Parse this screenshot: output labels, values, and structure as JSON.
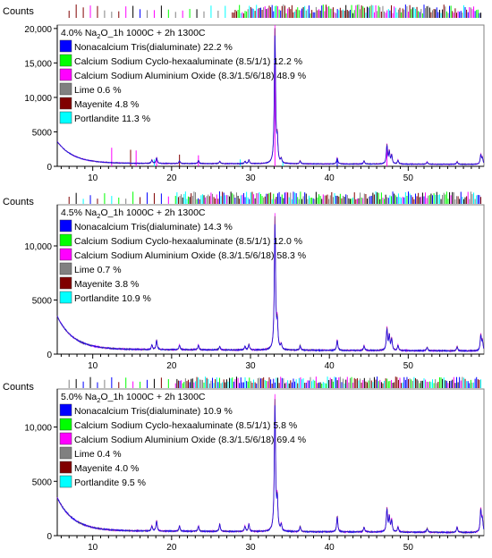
{
  "chart_data": [
    {
      "type": "line",
      "title": "4.0% Na2O_1h  1000C + 2h 1300C",
      "title_parts": {
        "pre": "4.0% Na",
        "sub": "2",
        "post": "O_1h  1000C + 2h 1300C"
      },
      "ylabel": "Counts",
      "xlabel": "",
      "xlim": [
        5.5,
        59.6
      ],
      "ylim": [
        0,
        20500
      ],
      "xticks": [
        10,
        20,
        30,
        40,
        50
      ],
      "xtick_labels": [
        "10",
        "20",
        "30",
        "40",
        "50"
      ],
      "yticks": [
        0,
        5000,
        10000,
        15000,
        20000
      ],
      "ytick_labels": [
        "0",
        "5000",
        "10,000",
        "15,000",
        "20,000"
      ],
      "grid": false,
      "legend_position": "top-left",
      "legend": [
        {
          "label": "Nonacalcium Tris(dialuminate) 22.2 %",
          "color": "#0000ff"
        },
        {
          "label": "Calcium Sodium Cyclo-hexaaluminate (8.5/1/1) 12.2 %",
          "color": "#00ff00"
        },
        {
          "label": "Calcium Sodium Aluminium Oxide (8.3/1.5/6/18) 48.9 %",
          "color": "#ff00ff"
        },
        {
          "label": "Lime 0.6 %",
          "color": "#808080"
        },
        {
          "label": "Mayenite 4.8 %",
          "color": "#800000"
        },
        {
          "label": "Portlandite 11.3 %",
          "color": "#00ffff"
        }
      ],
      "baseline": {
        "start": 3600,
        "decay": 0.5,
        "tail": 450,
        "slope": 3
      },
      "peaks": [
        [
          17.5,
          500
        ],
        [
          18.1,
          900
        ],
        [
          21.0,
          400
        ],
        [
          23.4,
          450
        ],
        [
          26.1,
          350
        ],
        [
          29.3,
          350
        ],
        [
          29.8,
          550
        ],
        [
          33.1,
          20000
        ],
        [
          33.4,
          3400
        ],
        [
          33.9,
          600
        ],
        [
          36.3,
          450
        ],
        [
          41.0,
          900
        ],
        [
          44.4,
          450
        ],
        [
          47.3,
          2800
        ],
        [
          47.6,
          1800
        ],
        [
          47.9,
          1300
        ],
        [
          48.7,
          600
        ],
        [
          52.4,
          350
        ],
        [
          56.2,
          400
        ],
        [
          59.2,
          1400
        ],
        [
          59.4,
          900
        ]
      ],
      "sticks": [
        {
          "x": 33.1,
          "y": 20000,
          "color": "#ff00ff"
        },
        {
          "x": 47.3,
          "y": 3000,
          "color": "#ff00ff"
        },
        {
          "x": 18.1,
          "y": 1200,
          "color": "#ff00ff"
        },
        {
          "x": 41.0,
          "y": 1200,
          "color": "#0000ff"
        },
        {
          "x": 17.8,
          "y": 1000,
          "color": "#00ffff"
        },
        {
          "x": 28.7,
          "y": 1000,
          "color": "#00ffff"
        },
        {
          "x": 34.1,
          "y": 700,
          "color": "#00ffff"
        },
        {
          "x": 12.4,
          "y": 2700,
          "color": "#ff00ff"
        },
        {
          "x": 14.8,
          "y": 2400,
          "color": "#800000"
        },
        {
          "x": 15.5,
          "y": 2300,
          "color": "#ff00ff"
        },
        {
          "x": 21.0,
          "y": 1700,
          "color": "#800000"
        },
        {
          "x": 23.4,
          "y": 1600,
          "color": "#ff00ff"
        }
      ]
    },
    {
      "type": "line",
      "title": "4.5% Na2O_1h  1000C + 2h 1300C",
      "title_parts": {
        "pre": "4.5% Na",
        "sub": "2",
        "post": "O_1h  1000C + 2h 1300C"
      },
      "ylabel": "Counts",
      "xlabel": "",
      "xlim": [
        5.5,
        59.6
      ],
      "ylim": [
        0,
        13800
      ],
      "xticks": [
        10,
        20,
        30,
        40,
        50
      ],
      "xtick_labels": [
        "10",
        "20",
        "30",
        "40",
        "50"
      ],
      "yticks": [
        0,
        5000,
        10000
      ],
      "ytick_labels": [
        "0",
        "5000",
        "10,000"
      ],
      "grid": false,
      "legend_position": "top-left",
      "legend": [
        {
          "label": "Nonacalcium Tris(dialuminate) 14.3 %",
          "color": "#0000ff"
        },
        {
          "label": "Calcium Sodium Cyclo-hexaaluminate (8.5/1/1) 12.0 %",
          "color": "#00ff00"
        },
        {
          "label": "Calcium Sodium Aluminium Oxide (8.3/1.5/6/18) 58.3 %",
          "color": "#ff00ff"
        },
        {
          "label": "Lime 0.7 %",
          "color": "#808080"
        },
        {
          "label": "Mayenite 3.8 %",
          "color": "#800000"
        },
        {
          "label": "Portlandite 10.9 %",
          "color": "#00ffff"
        }
      ],
      "baseline": {
        "start": 3500,
        "decay": 0.5,
        "tail": 450,
        "slope": 3
      },
      "peaks": [
        [
          17.5,
          450
        ],
        [
          18.1,
          900
        ],
        [
          21.0,
          450
        ],
        [
          23.4,
          450
        ],
        [
          26.1,
          350
        ],
        [
          29.3,
          350
        ],
        [
          29.8,
          550
        ],
        [
          33.1,
          12500
        ],
        [
          33.4,
          2400
        ],
        [
          33.9,
          500
        ],
        [
          36.3,
          450
        ],
        [
          41.0,
          1000
        ],
        [
          44.4,
          450
        ],
        [
          47.3,
          2100
        ],
        [
          47.6,
          1400
        ],
        [
          47.9,
          1100
        ],
        [
          48.7,
          500
        ],
        [
          52.4,
          350
        ],
        [
          56.2,
          400
        ],
        [
          59.2,
          1500
        ],
        [
          59.4,
          900
        ]
      ],
      "sticks": []
    },
    {
      "type": "line",
      "title": "5.0% Na2O_1h  1000C + 2h 1300C",
      "title_parts": {
        "pre": "5.0% Na",
        "sub": "2",
        "post": "O_1h  1000C + 2h 1300C"
      },
      "ylabel": "Counts",
      "xlabel": "",
      "xlim": [
        5.5,
        59.6
      ],
      "ylim": [
        0,
        13500
      ],
      "xticks": [
        10,
        20,
        30,
        40,
        50
      ],
      "xtick_labels": [
        "10",
        "20",
        "30",
        "40",
        "50"
      ],
      "yticks": [
        0,
        5000,
        10000
      ],
      "ytick_labels": [
        "0",
        "5000",
        "10,000"
      ],
      "grid": false,
      "legend_position": "top-left",
      "legend": [
        {
          "label": "Nonacalcium Tris(dialuminate) 10.9 %",
          "color": "#0000ff"
        },
        {
          "label": "Calcium Sodium Cyclo-hexaaluminate (8.5/1/1) 5.8 %",
          "color": "#00ff00"
        },
        {
          "label": "Calcium Sodium Aluminium Oxide (8.3/1.5/6/18) 69.4 %",
          "color": "#ff00ff"
        },
        {
          "label": "Lime 0.4 %",
          "color": "#808080"
        },
        {
          "label": "Mayenite 4.0 %",
          "color": "#800000"
        },
        {
          "label": "Portlandite 9.5 %",
          "color": "#00ffff"
        }
      ],
      "baseline": {
        "start": 3500,
        "decay": 0.5,
        "tail": 450,
        "slope": 3
      },
      "peaks": [
        [
          17.5,
          500
        ],
        [
          18.1,
          1000
        ],
        [
          21.0,
          500
        ],
        [
          23.4,
          500
        ],
        [
          26.1,
          700
        ],
        [
          29.3,
          500
        ],
        [
          29.8,
          700
        ],
        [
          33.1,
          12400
        ],
        [
          33.4,
          2800
        ],
        [
          33.9,
          600
        ],
        [
          36.3,
          500
        ],
        [
          41.0,
          1500
        ],
        [
          44.4,
          500
        ],
        [
          47.3,
          2200
        ],
        [
          47.6,
          1400
        ],
        [
          47.9,
          1100
        ],
        [
          48.7,
          500
        ],
        [
          52.4,
          400
        ],
        [
          56.2,
          500
        ],
        [
          59.2,
          2200
        ],
        [
          59.4,
          1200
        ]
      ],
      "sticks": []
    }
  ]
}
